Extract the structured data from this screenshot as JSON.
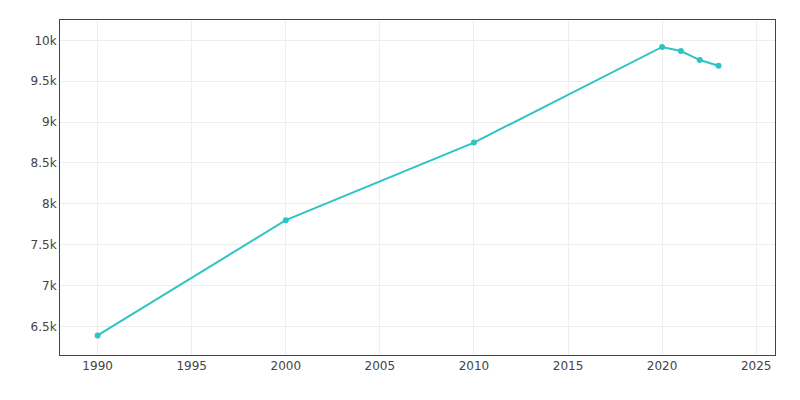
{
  "chart_data": {
    "type": "line",
    "x": [
      1990,
      2000,
      2010,
      2020,
      2021,
      2022,
      2023
    ],
    "values": [
      6390,
      7800,
      8750,
      9920,
      9870,
      9760,
      9690
    ],
    "color": "#2ec4c4",
    "marker": "circle",
    "xlim": [
      1988,
      2026
    ],
    "xticks": [
      1990,
      1995,
      2000,
      2005,
      2010,
      2015,
      2020,
      2025
    ],
    "ylim": [
      6150,
      10250
    ],
    "yticks": [
      {
        "value": 6500,
        "label": "6.5k"
      },
      {
        "value": 7000,
        "label": "7k"
      },
      {
        "value": 7500,
        "label": "7.5k"
      },
      {
        "value": 8000,
        "label": "8k"
      },
      {
        "value": 8500,
        "label": "8.5k"
      },
      {
        "value": 9000,
        "label": "9k"
      },
      {
        "value": 9500,
        "label": "9.5k"
      },
      {
        "value": 10000,
        "label": "10k"
      }
    ],
    "grid": true
  }
}
